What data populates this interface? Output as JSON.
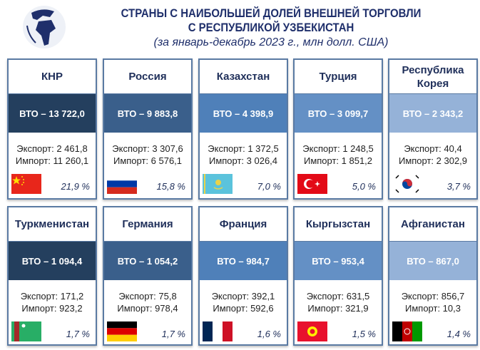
{
  "header": {
    "title_line1": "СТРАНЫ С НАИБОЛЬШЕЙ ДОЛЕЙ ВНЕШНЕЙ ТОРГОВЛИ",
    "title_line2": "С РЕСПУБЛИКОЙ УЗБЕКИСТАН",
    "subtitle": "(за январь-декабрь 2023 г., млн долл. США)",
    "logo_icon": "globe-icon"
  },
  "cards": [
    {
      "name": "КНР",
      "vto": "ВТО – 13 722,0",
      "export": "Экспорт: 2 461,8",
      "import": "Импорт: 11 260,1",
      "share": "21,9 %",
      "flag": "china",
      "band_color": "#243f5e"
    },
    {
      "name": "Россия",
      "vto": "ВТО – 9 883,8",
      "export": "Экспорт: 3 307,6",
      "import": "Импорт: 6 576,1",
      "share": "15,8 %",
      "flag": "russia",
      "band_color": "#3a5f8b"
    },
    {
      "name": "Казахстан",
      "vto": "ВТО – 4 398,9",
      "export": "Экспорт: 1 372,5",
      "import": "Импорт: 3 026,4",
      "share": "7,0 %",
      "flag": "kazakhstan",
      "band_color": "#4f80b9"
    },
    {
      "name": "Турция",
      "vto": "ВТО – 3 099,7",
      "export": "Экспорт: 1 248,5",
      "import": "Импорт: 1 851,2",
      "share": "5,0 %",
      "flag": "turkey",
      "band_color": "#6490c5"
    },
    {
      "name": "Республика Корея",
      "vto": "ВТО – 2 343,2",
      "export": "Экспорт: 40,4",
      "import": "Импорт: 2 302,9",
      "share": "3,7 %",
      "flag": "korea",
      "band_color": "#95b2d8"
    },
    {
      "name": "Туркменистан",
      "vto": "ВТО – 1 094,4",
      "export": "Экспорт: 171,2",
      "import": "Импорт: 923,2",
      "share": "1,7 %",
      "flag": "turkmenistan",
      "band_color": "#243f5e"
    },
    {
      "name": "Германия",
      "vto": "ВТО – 1 054,2",
      "export": "Экспорт: 75,8",
      "import": "Импорт: 978,4",
      "share": "1,7 %",
      "flag": "germany",
      "band_color": "#3a5f8b"
    },
    {
      "name": "Франция",
      "vto": "ВТО – 984,7",
      "export": "Экспорт: 392,1",
      "import": "Импорт: 592,6",
      "share": "1,6 %",
      "flag": "france",
      "band_color": "#4f80b9"
    },
    {
      "name": "Кыргызстан",
      "vto": "ВТО – 953,4",
      "export": "Экспорт: 631,5",
      "import": "Импорт: 321,9",
      "share": "1,5 %",
      "flag": "kyrgyzstan",
      "band_color": "#6490c5"
    },
    {
      "name": "Афганистан",
      "vto": "ВТО – 867,0",
      "export": "Экспорт: 856,7",
      "import": "Импорт: 10,3",
      "share": "1,4 %",
      "flag": "afghanistan",
      "band_color": "#95b2d8"
    }
  ]
}
